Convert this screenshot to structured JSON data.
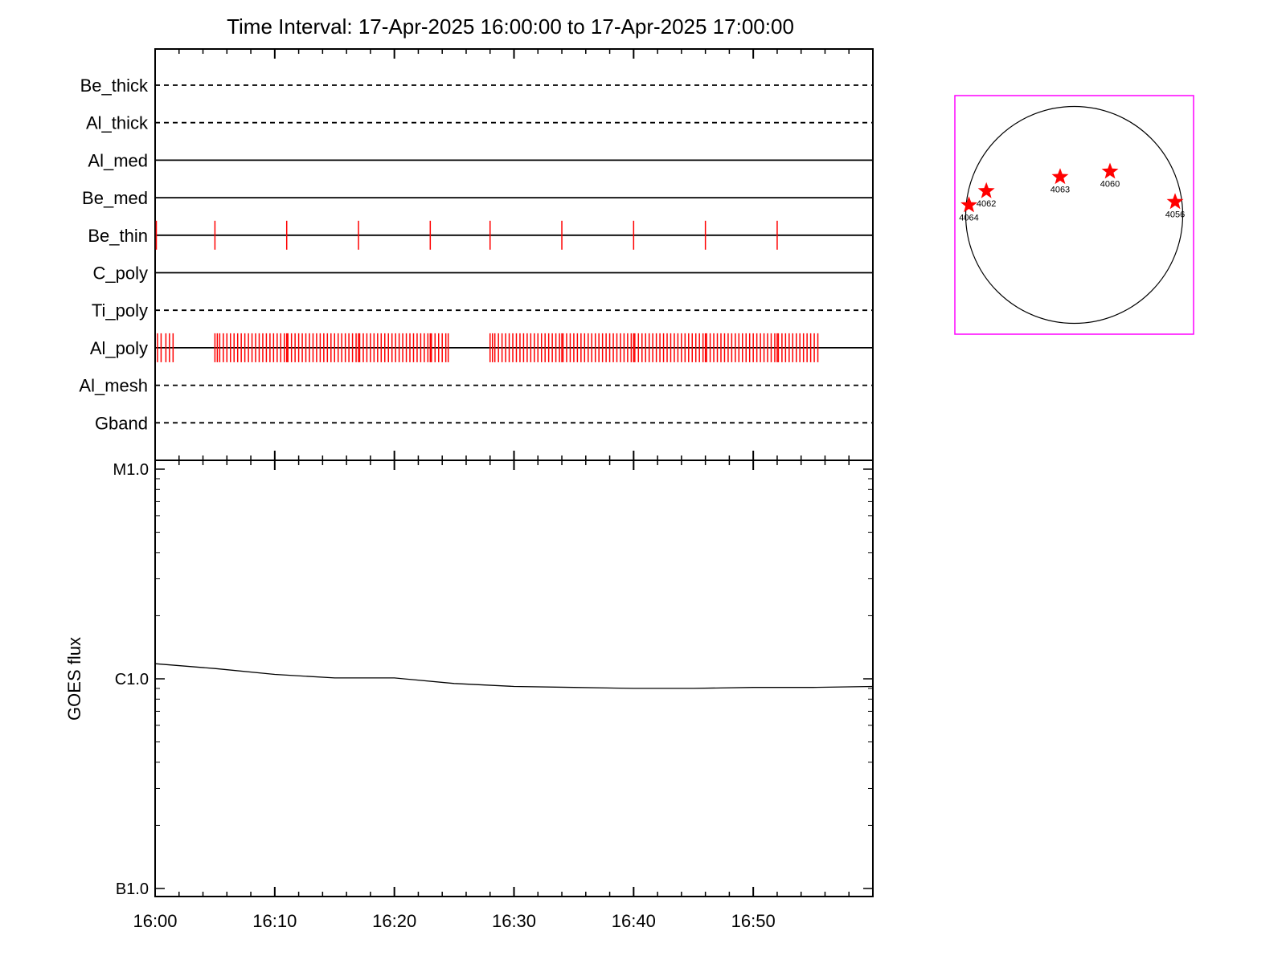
{
  "title": "Time Interval: 17-Apr-2025 16:00:00 to 17-Apr-2025 17:00:00",
  "chart_data": [
    {
      "type": "table",
      "description_printed": "",
      "filters": [
        {
          "name": "Be_thick",
          "line": "dashed",
          "events": []
        },
        {
          "name": "Al_thick",
          "line": "dashed",
          "events": []
        },
        {
          "name": "Al_med",
          "line": "solid",
          "events": []
        },
        {
          "name": "Be_med",
          "line": "solid",
          "events": []
        },
        {
          "name": "Be_thin",
          "line": "solid",
          "events": [
            0.1,
            5.0,
            11.0,
            17.0,
            23.0,
            28.0,
            34.0,
            40.0,
            46.0,
            52.0
          ]
        },
        {
          "name": "C_poly",
          "line": "solid",
          "events": []
        },
        {
          "name": "Ti_poly",
          "line": "dashed",
          "events": []
        },
        {
          "name": "Al_poly",
          "line": "solid",
          "events": [
            0.2,
            0.5,
            0.9,
            1.2,
            1.5,
            5.0,
            5.2,
            5.4,
            5.7,
            6.0,
            6.3,
            6.6,
            6.9,
            7.2,
            7.5,
            7.8,
            8.1,
            8.4,
            8.7,
            9.0,
            9.3,
            9.6,
            9.9,
            10.2,
            10.5,
            10.8,
            11.0,
            11.1,
            11.4,
            11.7,
            12.0,
            12.3,
            12.6,
            12.9,
            13.2,
            13.5,
            13.8,
            14.1,
            14.4,
            14.7,
            15.0,
            15.3,
            15.6,
            15.9,
            16.2,
            16.5,
            16.8,
            17.0,
            17.1,
            17.4,
            17.7,
            18.0,
            18.3,
            18.6,
            18.9,
            19.2,
            19.5,
            19.8,
            20.1,
            20.4,
            20.7,
            21.0,
            21.3,
            21.6,
            21.9,
            22.2,
            22.5,
            22.8,
            23.0,
            23.1,
            23.4,
            23.7,
            24.0,
            24.3,
            24.5,
            28.0,
            28.2,
            28.4,
            28.7,
            29.0,
            29.3,
            29.6,
            29.9,
            30.2,
            30.5,
            30.8,
            31.1,
            31.4,
            31.7,
            32.0,
            32.3,
            32.6,
            32.9,
            33.2,
            33.5,
            33.8,
            34.0,
            34.1,
            34.4,
            34.7,
            35.0,
            35.3,
            35.6,
            35.9,
            36.2,
            36.5,
            36.8,
            37.1,
            37.4,
            37.7,
            38.0,
            38.3,
            38.6,
            38.9,
            39.2,
            39.5,
            39.8,
            40.0,
            40.1,
            40.4,
            40.7,
            41.0,
            41.3,
            41.6,
            41.9,
            42.2,
            42.5,
            42.8,
            43.1,
            43.4,
            43.7,
            44.0,
            44.3,
            44.6,
            44.9,
            45.2,
            45.5,
            45.8,
            46.0,
            46.1,
            46.4,
            46.7,
            47.0,
            47.3,
            47.6,
            47.9,
            48.2,
            48.5,
            48.8,
            49.1,
            49.4,
            49.7,
            50.0,
            50.3,
            50.6,
            50.9,
            51.2,
            51.5,
            51.8,
            52.0,
            52.1,
            52.4,
            52.7,
            53.0,
            53.3,
            53.6,
            53.9,
            54.2,
            54.5,
            54.8,
            55.1,
            55.4
          ]
        },
        {
          "name": "Al_mesh",
          "line": "dashed",
          "events": []
        },
        {
          "name": "Gband",
          "line": "dashed",
          "events": []
        }
      ],
      "event_color": "#ff0000",
      "x_range_minutes": [
        0,
        60
      ]
    },
    {
      "type": "line",
      "ylabel": "GOES flux",
      "yscale": "log",
      "ylim": [
        5e-07,
        1.2e-05
      ],
      "yticks": [
        {
          "label": "M1.0",
          "value": 1e-05
        },
        {
          "label": "C1.0",
          "value": 1e-06
        },
        {
          "label": "B1.0",
          "value": 1e-07
        }
      ],
      "x": [
        0,
        5,
        10,
        15,
        20,
        25,
        30,
        35,
        40,
        45,
        50,
        55,
        60
      ],
      "values": [
        1.18e-06,
        1.12e-06,
        1.05e-06,
        1.01e-06,
        1.01e-06,
        9.5e-07,
        9.2e-07,
        9.1e-07,
        9e-07,
        9e-07,
        9.1e-07,
        9.1e-07,
        9.2e-07
      ],
      "series_color": "#000000",
      "x_tick_labels": [
        "16:00",
        "16:10",
        "16:20",
        "16:30",
        "16:40",
        "16:50"
      ],
      "x_tick_minutes": [
        0,
        10,
        20,
        30,
        40,
        50
      ]
    },
    {
      "type": "scatter",
      "description_printed": "",
      "disk": true,
      "box_color": "#ff00ff",
      "marker_color": "#ff0000",
      "regions": [
        {
          "label": "4064",
          "x": -0.97,
          "y": 0.09
        },
        {
          "label": "4062",
          "x": -0.81,
          "y": 0.22
        },
        {
          "label": "4063",
          "x": -0.13,
          "y": 0.35
        },
        {
          "label": "4060",
          "x": 0.33,
          "y": 0.4
        },
        {
          "label": "4056",
          "x": 0.93,
          "y": 0.12
        }
      ]
    }
  ]
}
